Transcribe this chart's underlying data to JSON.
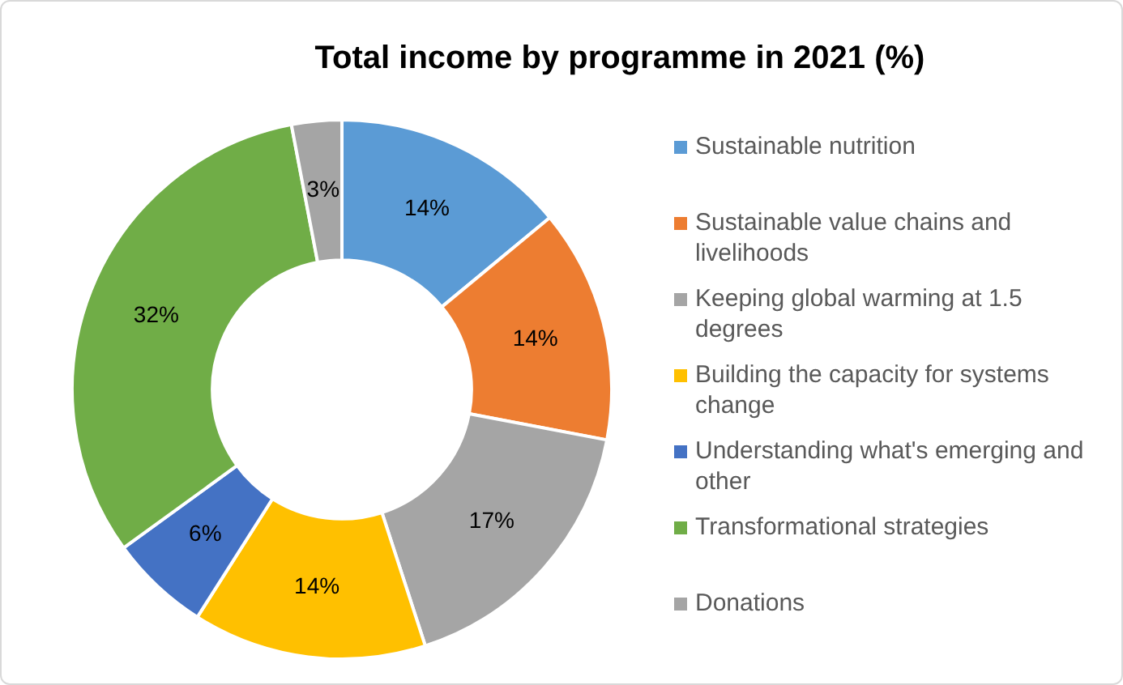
{
  "chart_data": {
    "type": "donut",
    "title": "Total income by programme in 2021 (%)",
    "categories": [
      "Sustainable nutrition",
      "Sustainable value chains and livelihoods",
      "Keeping global warming at 1.5 degrees",
      "Building the capacity for systems change",
      "Understanding what's emerging and other",
      "Transformational strategies",
      "Donations"
    ],
    "values": [
      14,
      14,
      17,
      14,
      6,
      32,
      3
    ],
    "colors": [
      "#5b9bd5",
      "#ed7d31",
      "#a5a5a5",
      "#ffc000",
      "#4472c4",
      "#70ad47",
      "#a5a5a5"
    ],
    "value_labels": [
      "14%",
      "14%",
      "17%",
      "14%",
      "6%",
      "32%",
      "3%"
    ],
    "legend": "right"
  }
}
